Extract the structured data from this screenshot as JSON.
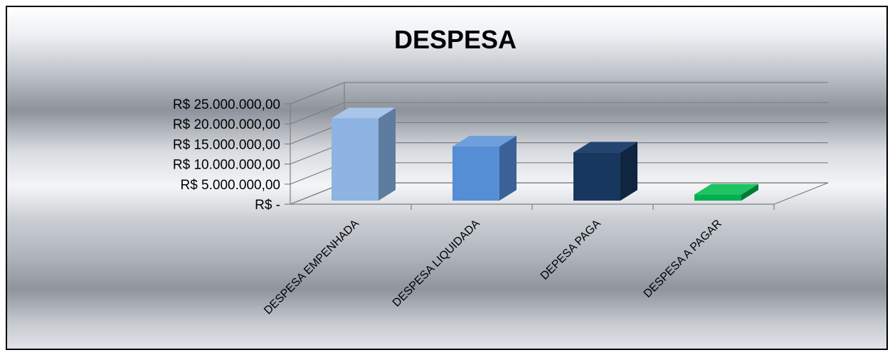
{
  "chart_data": {
    "type": "bar",
    "title": "DESPESA",
    "xlabel": "",
    "ylabel": "",
    "categories": [
      "DESPESA EMPENHADA",
      "DESPESA LIQUIDADA",
      "DEPESA PAGA",
      "DESPESA A PAGAR"
    ],
    "values": [
      20500000,
      13500000,
      12000000,
      1500000
    ],
    "colors": [
      "#8DB4E2",
      "#558ED5",
      "#17375E",
      "#00B050"
    ],
    "side_colors": [
      "#5E7BA0",
      "#3A6296",
      "#0F2540",
      "#007A37"
    ],
    "top_colors": [
      "#A9C6EA",
      "#6E9FDC",
      "#24456F",
      "#1FC462"
    ],
    "ylim": [
      0,
      25000000
    ],
    "yticks": [
      0,
      5000000,
      10000000,
      15000000,
      20000000,
      25000000
    ],
    "ytick_labels": [
      "R$ -",
      "R$ 5.000.000,00",
      "R$ 10.000.000,00",
      "R$ 15.000.000,00",
      "R$ 20.000.000,00",
      "R$ 25.000.000,00"
    ],
    "grid": true,
    "legend": "none"
  }
}
